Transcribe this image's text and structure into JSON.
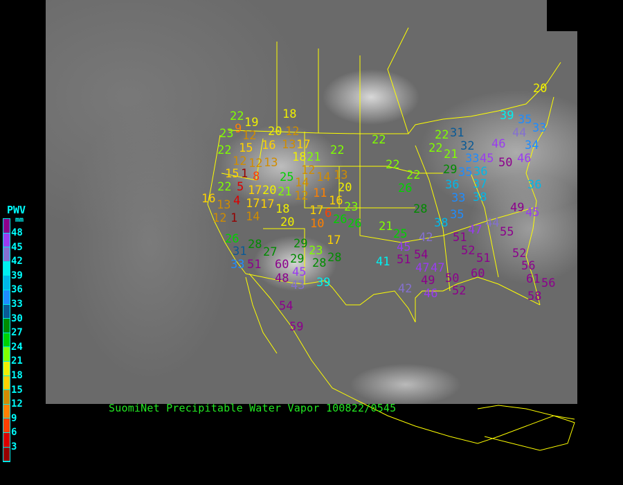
{
  "caption": "SuomiNet Precipitable Water Vapor 100822/0545",
  "legend": {
    "title": "PWV",
    "unit": "mm",
    "labels": [
      "48",
      "45",
      "42",
      "39",
      "36",
      "33",
      "30",
      "27",
      "24",
      "21",
      "18",
      "15",
      "12",
      "9",
      "6",
      "3"
    ],
    "colors": [
      "#8c008c",
      "#9a3cf0",
      "#8470d0",
      "#00f0f0",
      "#00b8e8",
      "#1e8cff",
      "#0a5a96",
      "#008c00",
      "#00d200",
      "#80ff00",
      "#f0f000",
      "#ffd200",
      "#d08c00",
      "#ff8000",
      "#ff4000",
      "#dc0000",
      "#960000"
    ]
  },
  "map": {
    "border_color": "#ffff00",
    "station_values": [
      22,
      9,
      19,
      23,
      18,
      20,
      12,
      12,
      22,
      15,
      16,
      13,
      17,
      22,
      12,
      12,
      13,
      18,
      21,
      12,
      15,
      1,
      8,
      25,
      14,
      14,
      13,
      22,
      5,
      17,
      20,
      21,
      12,
      11,
      20,
      16,
      4,
      13,
      17,
      17,
      16,
      23,
      12,
      1,
      14,
      18,
      20,
      17,
      6,
      10,
      26,
      26,
      26,
      28,
      27,
      29,
      17,
      23,
      29,
      28,
      28,
      31,
      33,
      51,
      60,
      45,
      48,
      43,
      39,
      54,
      59,
      22,
      22,
      22,
      26,
      28,
      21,
      22,
      22,
      31,
      21,
      32,
      33,
      29,
      35,
      45,
      36,
      37,
      38,
      36,
      33,
      35,
      38,
      39,
      35,
      33,
      44,
      46,
      34,
      50,
      46,
      36,
      49,
      45,
      20,
      25,
      42,
      47,
      44,
      55,
      51,
      45,
      51,
      54,
      41,
      52,
      51,
      52,
      56,
      47,
      47,
      60,
      61,
      49,
      50,
      56,
      42,
      46,
      52,
      58
    ]
  }
}
